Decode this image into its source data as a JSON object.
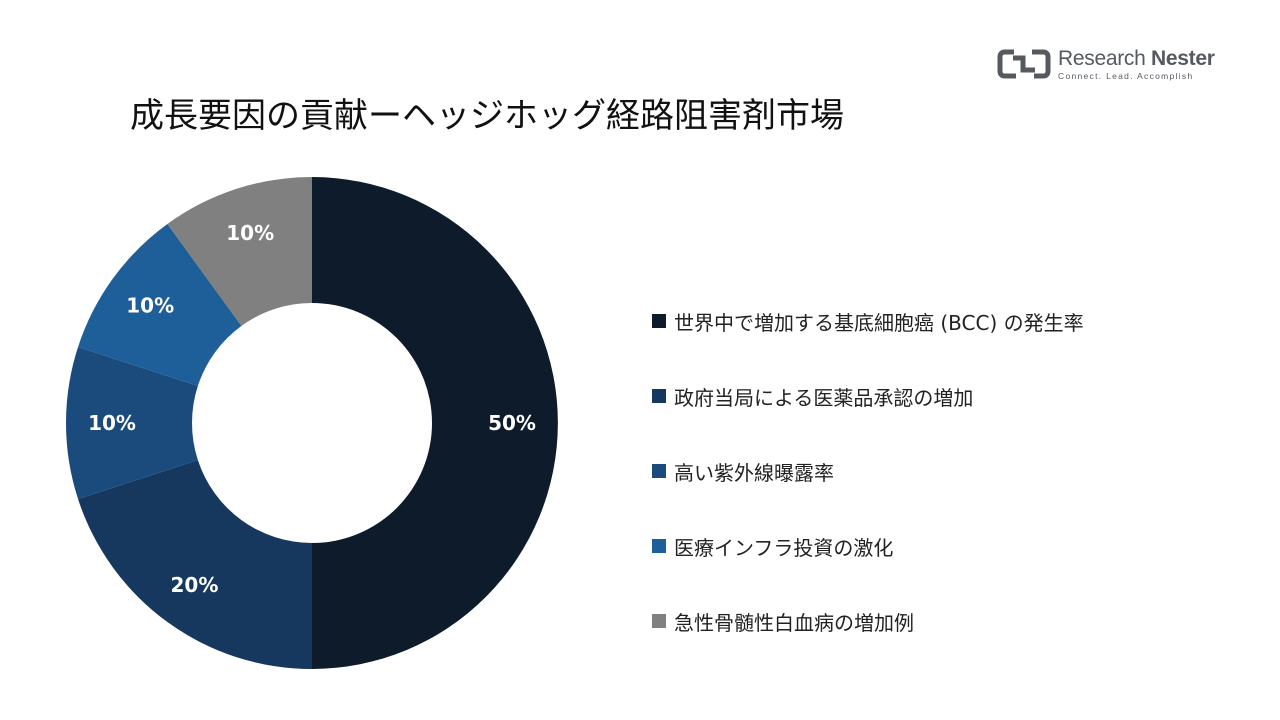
{
  "header": {
    "title": "成長要因の貢献ーヘッジホッグ経路阻害剤市場"
  },
  "logo": {
    "name_regular": "Research ",
    "name_bold": "Nester",
    "tagline": "Connect. Lead. Accomplish"
  },
  "chart_data": {
    "type": "pie",
    "donut": true,
    "title": "成長要因の貢献ーヘッジホッグ経路阻害剤市場",
    "categories": [
      "世界中で増加する基底細胞癌 (BCC) の発生率",
      "政府当局による医薬品承認の増加",
      "高い紫外線曝露率",
      "医療インフラ投資の激化",
      "急性骨髄性白血病の増加例"
    ],
    "values": [
      50,
      20,
      10,
      10,
      10
    ],
    "unit": "%",
    "data_labels": [
      "50%",
      "20%",
      "10%",
      "10%",
      "10%"
    ],
    "colors": [
      "#0d1b2a",
      "#16375e",
      "#1b4a7c",
      "#1f5f99",
      "#808080"
    ],
    "legend_position": "right"
  }
}
